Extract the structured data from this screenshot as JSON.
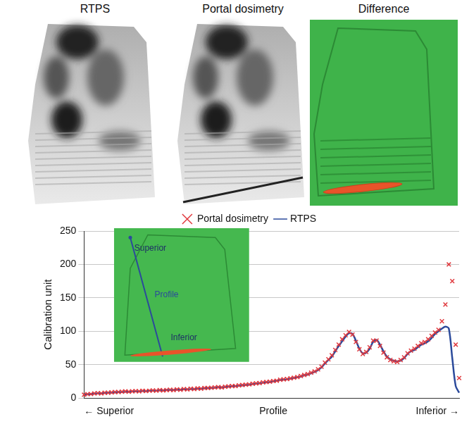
{
  "images": {
    "titles": [
      "RTPS",
      "Portal dosimetry",
      "Difference"
    ]
  },
  "chart_data": {
    "type": "line",
    "y_label": "Calibration unit",
    "annotations": [
      "Superior",
      "Profile",
      "Inferior"
    ],
    "legend": "top",
    "grid": true,
    "ylim": [
      0,
      250
    ],
    "yticks": [
      0,
      50,
      100,
      150,
      200,
      250
    ],
    "categories": [
      "← Superior",
      null,
      null,
      null,
      null,
      null,
      null,
      null,
      null,
      null,
      null,
      null,
      null,
      null,
      null,
      null,
      null,
      null,
      null,
      null,
      null,
      null,
      null,
      null,
      null,
      null,
      null,
      null,
      null,
      null,
      null,
      null,
      null,
      null,
      null,
      null,
      null,
      null,
      null,
      null,
      null,
      null,
      null,
      null,
      null,
      null,
      null,
      null,
      null,
      null,
      null,
      null,
      null,
      null,
      null,
      "Profile",
      null,
      null,
      null,
      null,
      null,
      null,
      null,
      null,
      null,
      null,
      null,
      null,
      null,
      null,
      null,
      null,
      null,
      null,
      null,
      null,
      null,
      null,
      null,
      null,
      null,
      null,
      null,
      null,
      null,
      null,
      null,
      null,
      null,
      null,
      null,
      null,
      null,
      null,
      null,
      null,
      null,
      null,
      null,
      null,
      null,
      null,
      null,
      null,
      null,
      null,
      null,
      null,
      null,
      "Inferior →"
    ],
    "series": [
      {
        "name": "RTPS",
        "color": "#2b4a9b",
        "marker": "none",
        "line_style": "solid",
        "values": [
          5,
          5.5,
          6,
          6.5,
          7,
          7,
          7.5,
          8,
          8,
          8.5,
          9,
          9,
          9.5,
          9.5,
          10,
          10,
          10,
          10.5,
          10.5,
          11,
          11,
          11,
          11.5,
          11.5,
          12,
          12,
          12,
          12.5,
          12.5,
          13,
          13,
          13.5,
          13.5,
          14,
          14,
          14.5,
          15,
          15,
          15.5,
          16,
          16,
          16.5,
          17,
          17.5,
          18,
          18.5,
          19,
          19.5,
          20,
          21,
          21.5,
          22,
          23,
          23.5,
          24,
          25,
          26,
          27,
          27.5,
          28,
          29,
          30,
          31,
          32,
          34,
          35,
          37,
          39,
          42,
          46,
          52,
          57,
          62,
          70,
          78,
          85,
          92,
          97,
          96,
          86,
          74,
          67,
          68,
          74,
          84,
          87,
          80,
          70,
          62,
          58,
          56,
          55,
          56,
          60,
          66,
          70,
          72,
          76,
          80,
          82,
          85,
          90,
          96,
          100,
          104,
          107,
          104,
          60,
          18,
          8
        ]
      },
      {
        "name": "Portal dosimetry",
        "color": "#e0393e",
        "marker": "x",
        "line_style": "none",
        "values": [
          5,
          6,
          6,
          7,
          7.5,
          7,
          8,
          8,
          8.5,
          9,
          9,
          9.5,
          10,
          9.5,
          10,
          10.5,
          10,
          11,
          10.5,
          11,
          11.5,
          11,
          12,
          11.5,
          12,
          12.5,
          12,
          13,
          12.5,
          13.5,
          13,
          14,
          13.5,
          14.5,
          14,
          15,
          15,
          15.5,
          16,
          16.5,
          16,
          17,
          17.5,
          18,
          18,
          19,
          19.5,
          20,
          20.5,
          21.5,
          22,
          22.5,
          23.5,
          24,
          24.5,
          25.5,
          26,
          27.5,
          28,
          28.5,
          29.5,
          30.5,
          31.5,
          33,
          34.5,
          36,
          38,
          40,
          43,
          47,
          53,
          58,
          64,
          72,
          80,
          88,
          94,
          99,
          95,
          84,
          73,
          66,
          69,
          76,
          86,
          86,
          78,
          68,
          61,
          57,
          55,
          54,
          57,
          61,
          67,
          71,
          74,
          78,
          82,
          84,
          88,
          93,
          98,
          102,
          115,
          140,
          200,
          175,
          80,
          30
        ]
      }
    ]
  }
}
